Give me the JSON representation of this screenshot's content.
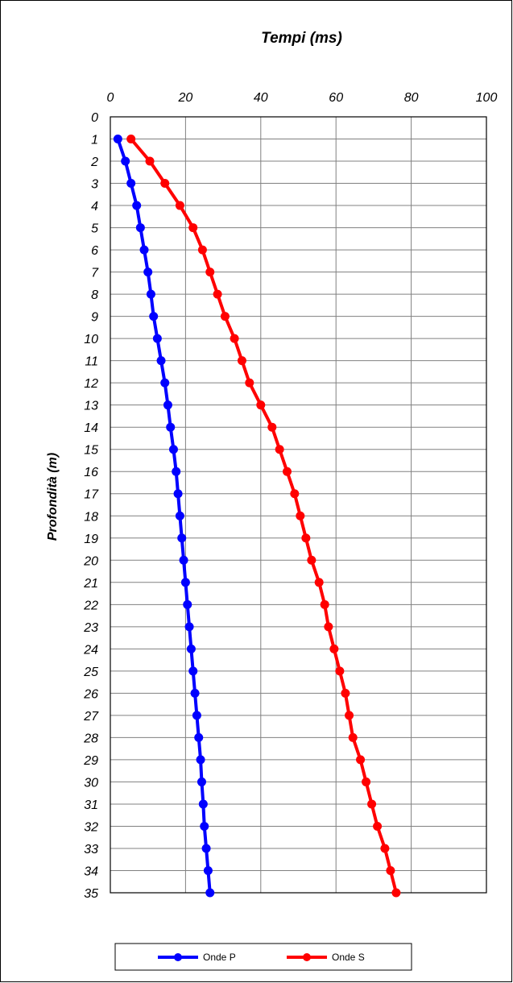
{
  "chart_data": {
    "type": "line",
    "title": "Tempi (ms)",
    "xlabel": "Tempi (ms)",
    "ylabel": "Profondità (m)",
    "xlim": [
      0,
      100
    ],
    "ylim": [
      0,
      35
    ],
    "y_inverted": true,
    "x_axis_position": "top",
    "x_ticks": [
      "0",
      "20",
      "40",
      "60",
      "80",
      "100"
    ],
    "y_ticks": [
      "0",
      "1",
      "2",
      "3",
      "4",
      "5",
      "6",
      "7",
      "8",
      "9",
      "10",
      "11",
      "12",
      "13",
      "14",
      "15",
      "16",
      "17",
      "18",
      "19",
      "20",
      "21",
      "22",
      "23",
      "24",
      "25",
      "26",
      "27",
      "28",
      "29",
      "30",
      "31",
      "32",
      "33",
      "34",
      "35"
    ],
    "grid": true,
    "legend_position": "bottom",
    "depths": [
      1,
      2,
      3,
      4,
      5,
      6,
      7,
      8,
      9,
      10,
      11,
      12,
      13,
      14,
      15,
      16,
      17,
      18,
      19,
      20,
      21,
      22,
      23,
      24,
      25,
      26,
      27,
      28,
      29,
      30,
      31,
      32,
      33,
      34,
      35
    ],
    "series": [
      {
        "name": "Onde P",
        "color": "#0000ff",
        "x": [
          2.0,
          4.0,
          5.5,
          7.0,
          8.0,
          9.0,
          10.0,
          10.8,
          11.5,
          12.5,
          13.5,
          14.5,
          15.3,
          16.0,
          16.8,
          17.5,
          18.0,
          18.5,
          19.0,
          19.5,
          20.0,
          20.5,
          21.0,
          21.5,
          22.0,
          22.5,
          23.0,
          23.5,
          24.0,
          24.3,
          24.7,
          25.0,
          25.5,
          26.0,
          26.5
        ]
      },
      {
        "name": "Onde S",
        "color": "#ff0000",
        "x": [
          5.5,
          10.5,
          14.5,
          18.5,
          22.0,
          24.5,
          26.5,
          28.5,
          30.5,
          33.0,
          35.0,
          37.0,
          40.0,
          43.0,
          45.0,
          47.0,
          49.0,
          50.5,
          52.0,
          53.5,
          55.5,
          57.0,
          58.0,
          59.5,
          61.0,
          62.5,
          63.5,
          64.5,
          66.5,
          68.0,
          69.5,
          71.0,
          73.0,
          74.5,
          76.0
        ]
      }
    ]
  }
}
